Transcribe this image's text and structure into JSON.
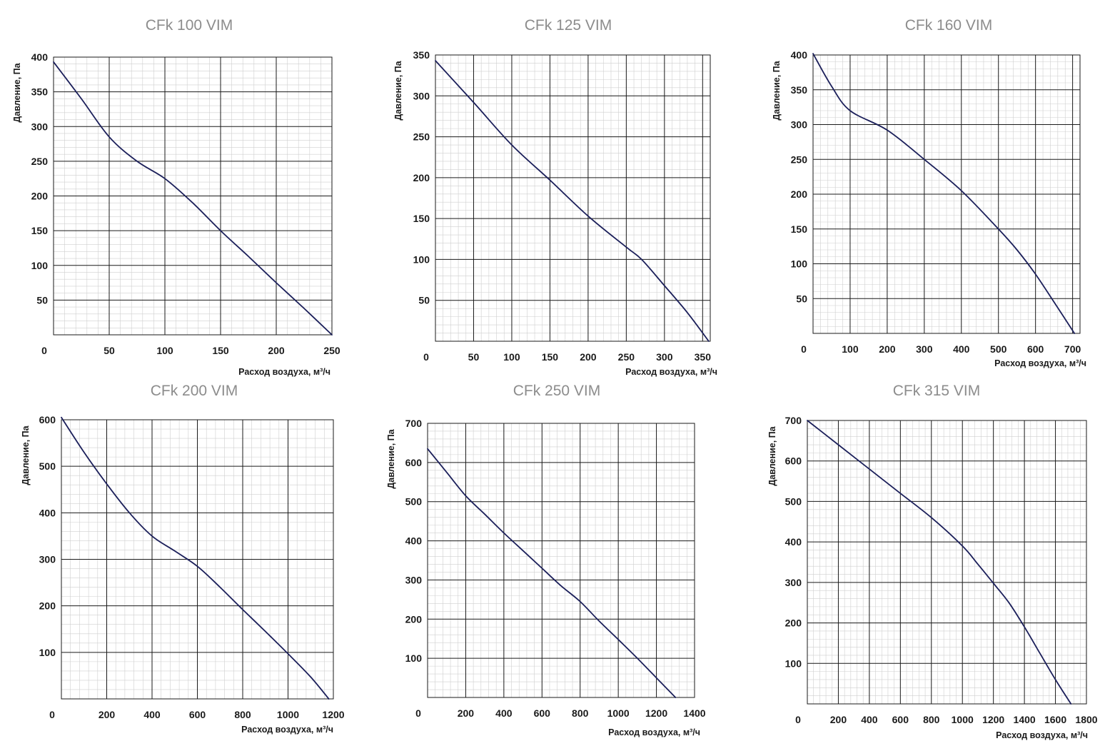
{
  "colors": {
    "title": "#8c8c8c",
    "curve": "#1b1f5a",
    "grid_major": "#1a1a1a",
    "grid_minor": "#cfcfcf"
  },
  "chart_data": [
    {
      "type": "line",
      "title": "CFk 100 VIM",
      "xlabel": "Расход воздуха, м³/ч",
      "ylabel": "Давление, Па",
      "xlim": [
        0,
        250
      ],
      "ylim": [
        0,
        400
      ],
      "x_ticks": [
        50,
        100,
        150,
        200,
        250
      ],
      "y_ticks": [
        50,
        100,
        150,
        200,
        250,
        300,
        350,
        400
      ],
      "x_minor_step": 10,
      "y_minor_step": 10,
      "series": [
        {
          "name": "CFk 100 VIM",
          "x": [
            0,
            25,
            50,
            75,
            100,
            125,
            150,
            175,
            200,
            225,
            250
          ],
          "y": [
            393,
            340,
            285,
            250,
            225,
            190,
            150,
            113,
            75,
            38,
            0
          ]
        }
      ]
    },
    {
      "type": "line",
      "title": "CFk 125 VIM",
      "xlabel": "Расход воздуха, м³/ч",
      "ylabel": "Давление, Па",
      "xlim": [
        0,
        360
      ],
      "ylim": [
        0,
        350
      ],
      "x_ticks": [
        50,
        100,
        150,
        200,
        250,
        300,
        350
      ],
      "y_ticks": [
        50,
        100,
        150,
        200,
        250,
        300,
        350
      ],
      "x_minor_step": 10,
      "y_minor_step": 10,
      "series": [
        {
          "name": "CFk 125 VIM",
          "x": [
            0,
            50,
            100,
            150,
            200,
            250,
            270,
            300,
            330,
            358
          ],
          "y": [
            343,
            292,
            240,
            197,
            153,
            115,
            100,
            68,
            35,
            0
          ]
        }
      ]
    },
    {
      "type": "line",
      "title": "CFk 160 VIM",
      "xlabel": "Расход воздуха, м³/ч",
      "ylabel": "Давление, Па",
      "xlim": [
        0,
        720
      ],
      "ylim": [
        0,
        400
      ],
      "x_ticks": [
        100,
        200,
        300,
        400,
        500,
        600,
        700
      ],
      "y_ticks": [
        50,
        100,
        150,
        200,
        250,
        300,
        350,
        400
      ],
      "x_minor_step": 20,
      "y_minor_step": 10,
      "series": [
        {
          "name": "CFk 160 VIM",
          "x": [
            0,
            50,
            100,
            200,
            300,
            400,
            500,
            550,
            600,
            650,
            705
          ],
          "y": [
            402,
            355,
            320,
            292,
            250,
            205,
            150,
            120,
            85,
            45,
            0
          ]
        }
      ]
    },
    {
      "type": "line",
      "title": "CFk 200 VIM",
      "xlabel": "Расход воздуха, м³/ч",
      "ylabel": "Давление, Па",
      "xlim": [
        0,
        1200
      ],
      "ylim": [
        0,
        600
      ],
      "x_ticks": [
        200,
        400,
        600,
        800,
        1000,
        1200
      ],
      "y_ticks": [
        100,
        200,
        300,
        400,
        500,
        600
      ],
      "x_minor_step": 40,
      "y_minor_step": 20,
      "series": [
        {
          "name": "CFk 200 VIM",
          "x": [
            0,
            100,
            200,
            300,
            400,
            500,
            600,
            700,
            800,
            900,
            1000,
            1100,
            1180
          ],
          "y": [
            605,
            530,
            462,
            400,
            350,
            318,
            285,
            240,
            192,
            145,
            97,
            47,
            0
          ]
        }
      ]
    },
    {
      "type": "line",
      "title": "CFk 250 VIM",
      "xlabel": "Расход воздуха, м³/ч",
      "ylabel": "Давление, Па",
      "xlim": [
        0,
        1400
      ],
      "ylim": [
        0,
        700
      ],
      "x_ticks": [
        200,
        400,
        600,
        800,
        1000,
        1200,
        1400
      ],
      "y_ticks": [
        100,
        200,
        300,
        400,
        500,
        600,
        700
      ],
      "x_minor_step": 40,
      "y_minor_step": 20,
      "series": [
        {
          "name": "CFk 250 VIM",
          "x": [
            0,
            100,
            200,
            300,
            400,
            500,
            600,
            700,
            800,
            900,
            1000,
            1100,
            1200,
            1300
          ],
          "y": [
            635,
            575,
            515,
            468,
            420,
            375,
            330,
            285,
            245,
            195,
            148,
            100,
            50,
            0
          ]
        }
      ]
    },
    {
      "type": "line",
      "title": "CFk 315 VIM",
      "xlabel": "Расход воздуха, м³/ч",
      "ylabel": "Давление, Па",
      "xlim": [
        0,
        1800
      ],
      "ylim": [
        0,
        700
      ],
      "x_ticks": [
        200,
        400,
        600,
        800,
        1000,
        1200,
        1400,
        1600,
        1800
      ],
      "y_ticks": [
        100,
        200,
        300,
        400,
        500,
        600,
        700
      ],
      "x_minor_step": 40,
      "y_minor_step": 20,
      "series": [
        {
          "name": "CFk 315 VIM",
          "x": [
            0,
            200,
            400,
            600,
            800,
            1000,
            1100,
            1200,
            1300,
            1400,
            1500,
            1600,
            1700
          ],
          "y": [
            700,
            640,
            580,
            520,
            460,
            390,
            345,
            298,
            250,
            190,
            125,
            60,
            0
          ]
        }
      ]
    }
  ],
  "origin_label": "0"
}
